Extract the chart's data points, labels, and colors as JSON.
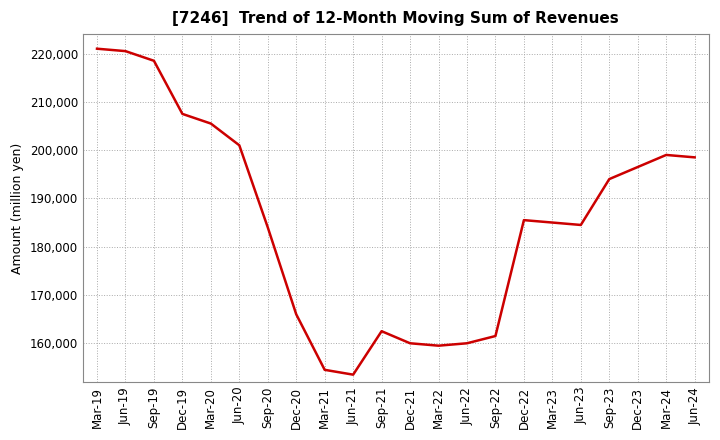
{
  "title": "[7246]  Trend of 12-Month Moving Sum of Revenues",
  "ylabel": "Amount (million yen)",
  "line_color": "#cc0000",
  "background_color": "#ffffff",
  "plot_bg_color": "#ffffff",
  "grid_color": "#aaaaaa",
  "labels": [
    "Mar-19",
    "Jun-19",
    "Sep-19",
    "Dec-19",
    "Mar-20",
    "Jun-20",
    "Sep-20",
    "Dec-20",
    "Mar-21",
    "Jun-21",
    "Sep-21",
    "Dec-21",
    "Mar-22",
    "Jun-22",
    "Sep-22",
    "Dec-22",
    "Mar-23",
    "Jun-23",
    "Sep-23",
    "Dec-23",
    "Mar-24",
    "Jun-24"
  ],
  "values": [
    221000,
    220500,
    218500,
    207500,
    205500,
    201000,
    184000,
    166000,
    154500,
    153500,
    162500,
    160000,
    159500,
    160000,
    161500,
    185500,
    185000,
    184500,
    194000,
    196500,
    199000,
    198500
  ],
  "ylim": [
    152000,
    224000
  ],
  "yticks": [
    160000,
    170000,
    180000,
    190000,
    200000,
    210000,
    220000
  ],
  "title_fontsize": 11,
  "label_fontsize": 9,
  "tick_fontsize": 8.5
}
